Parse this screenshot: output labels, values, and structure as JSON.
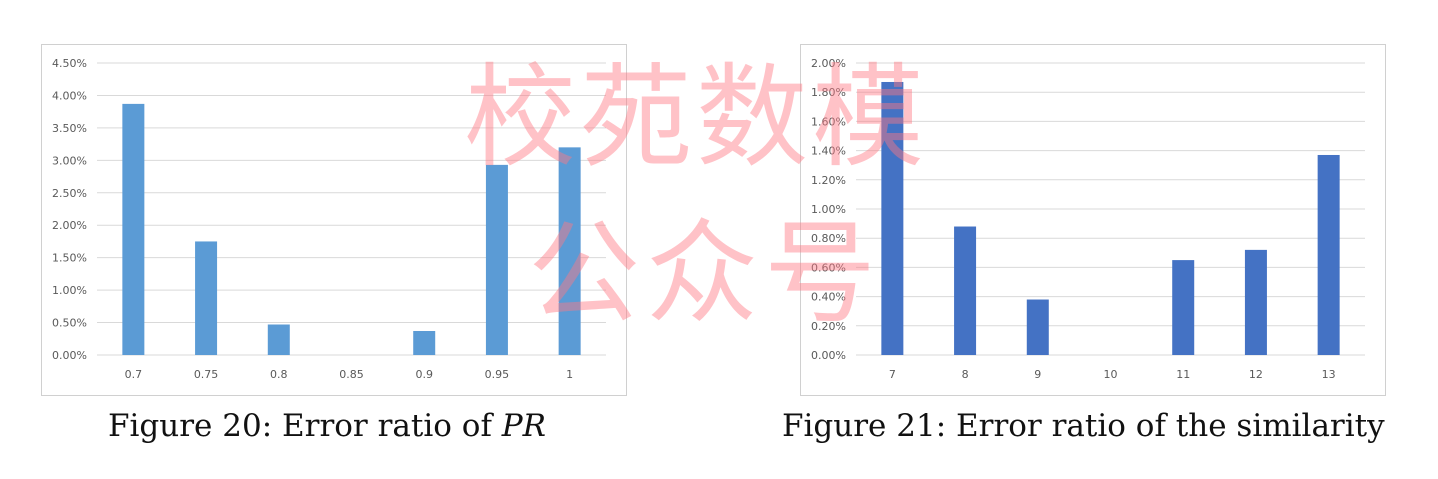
{
  "captions": {
    "left_prefix": "Figure 20: Error ratio of ",
    "left_math": "PR",
    "right": "Figure 21: Error ratio of the similarity"
  },
  "watermark": {
    "line1": "校苑数模",
    "line2": "公众号"
  },
  "colors": {
    "left_bar": "#5b9bd5",
    "right_bar": "#4472c4",
    "grid": "#d9d9d9",
    "watermark": "#ff7882"
  },
  "chart_data": [
    {
      "type": "bar",
      "title": "",
      "xlabel": "",
      "ylabel": "",
      "categories": [
        "0.7",
        "0.75",
        "0.8",
        "0.85",
        "0.9",
        "0.95",
        "1"
      ],
      "values": [
        3.87,
        1.75,
        0.47,
        0.0,
        0.37,
        2.93,
        3.2
      ],
      "value_unit": "%",
      "ylim": [
        0,
        4.5
      ],
      "yticks": [
        "0.00%",
        "0.50%",
        "1.00%",
        "1.50%",
        "2.00%",
        "2.50%",
        "3.00%",
        "3.50%",
        "4.00%",
        "4.50%"
      ],
      "grid": true,
      "legend": "none"
    },
    {
      "type": "bar",
      "title": "",
      "xlabel": "",
      "ylabel": "",
      "categories": [
        "7",
        "8",
        "9",
        "10",
        "11",
        "12",
        "13"
      ],
      "values": [
        1.87,
        0.88,
        0.38,
        0.0,
        0.65,
        0.72,
        1.37
      ],
      "value_unit": "%",
      "ylim": [
        0,
        2.0
      ],
      "yticks": [
        "0.00%",
        "0.20%",
        "0.40%",
        "0.60%",
        "0.80%",
        "1.00%",
        "1.20%",
        "1.40%",
        "1.60%",
        "1.80%",
        "2.00%"
      ],
      "grid": true,
      "legend": "none"
    }
  ]
}
